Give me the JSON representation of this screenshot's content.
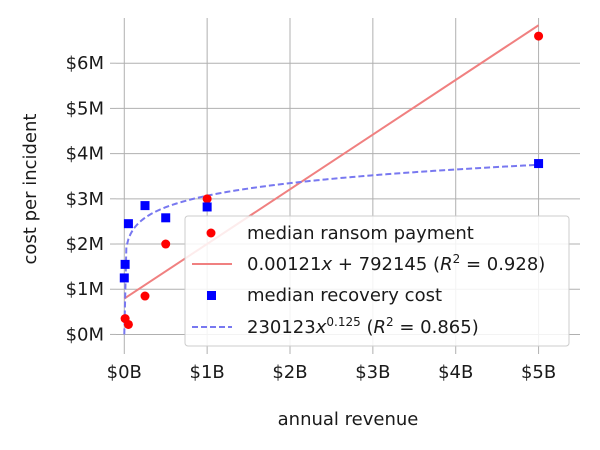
{
  "chart_data": {
    "type": "scatter",
    "xlabel": "annual revenue",
    "ylabel": "cost per incident",
    "xlim": [
      -0.1,
      5.5
    ],
    "ylim": [
      -0.3,
      7.0
    ],
    "x_ticks": [
      {
        "value": 0,
        "label": "$0B"
      },
      {
        "value": 1,
        "label": "$1B"
      },
      {
        "value": 2,
        "label": "$2B"
      },
      {
        "value": 3,
        "label": "$3B"
      },
      {
        "value": 4,
        "label": "$4B"
      },
      {
        "value": 5,
        "label": "$5B"
      }
    ],
    "y_ticks": [
      {
        "value": 0,
        "label": "$0M"
      },
      {
        "value": 1,
        "label": "$1M"
      },
      {
        "value": 2,
        "label": "$2M"
      },
      {
        "value": 3,
        "label": "$3M"
      },
      {
        "value": 4,
        "label": "$4M"
      },
      {
        "value": 5,
        "label": "$5M"
      },
      {
        "value": 6,
        "label": "$6M"
      }
    ],
    "grid": true,
    "legend_position": "lower right",
    "x_unit": "billions of dollars",
    "y_unit": "millions of dollars",
    "series": [
      {
        "name": "median ransom payment",
        "kind": "scatter",
        "marker": "circle",
        "color": "#ff0000",
        "x": [
          0.01,
          0.05,
          0.25,
          0.5,
          1.0,
          5.0
        ],
        "y": [
          0.35,
          0.22,
          0.85,
          2.0,
          3.0,
          6.6
        ]
      },
      {
        "name": "0.00121x + 792145 (R^2 = 0.928)",
        "kind": "line",
        "style": "solid",
        "color": "#f08080",
        "x": [
          0.0,
          5.0
        ],
        "y": [
          0.792,
          6.84
        ]
      },
      {
        "name": "median recovery cost",
        "kind": "scatter",
        "marker": "square",
        "color": "#0000ff",
        "x": [
          0.0,
          0.01,
          0.05,
          0.25,
          0.5,
          1.0,
          5.0
        ],
        "y": [
          1.25,
          1.55,
          2.45,
          2.85,
          2.58,
          2.82,
          3.78
        ]
      },
      {
        "name": "230123x^0.125 (R^2 = 0.865)",
        "kind": "power_curve",
        "style": "dashed",
        "color": "#7878f0",
        "coefficient": 230123,
        "exponent": 0.125,
        "x_range": [
          0.0,
          5.0
        ]
      }
    ]
  }
}
